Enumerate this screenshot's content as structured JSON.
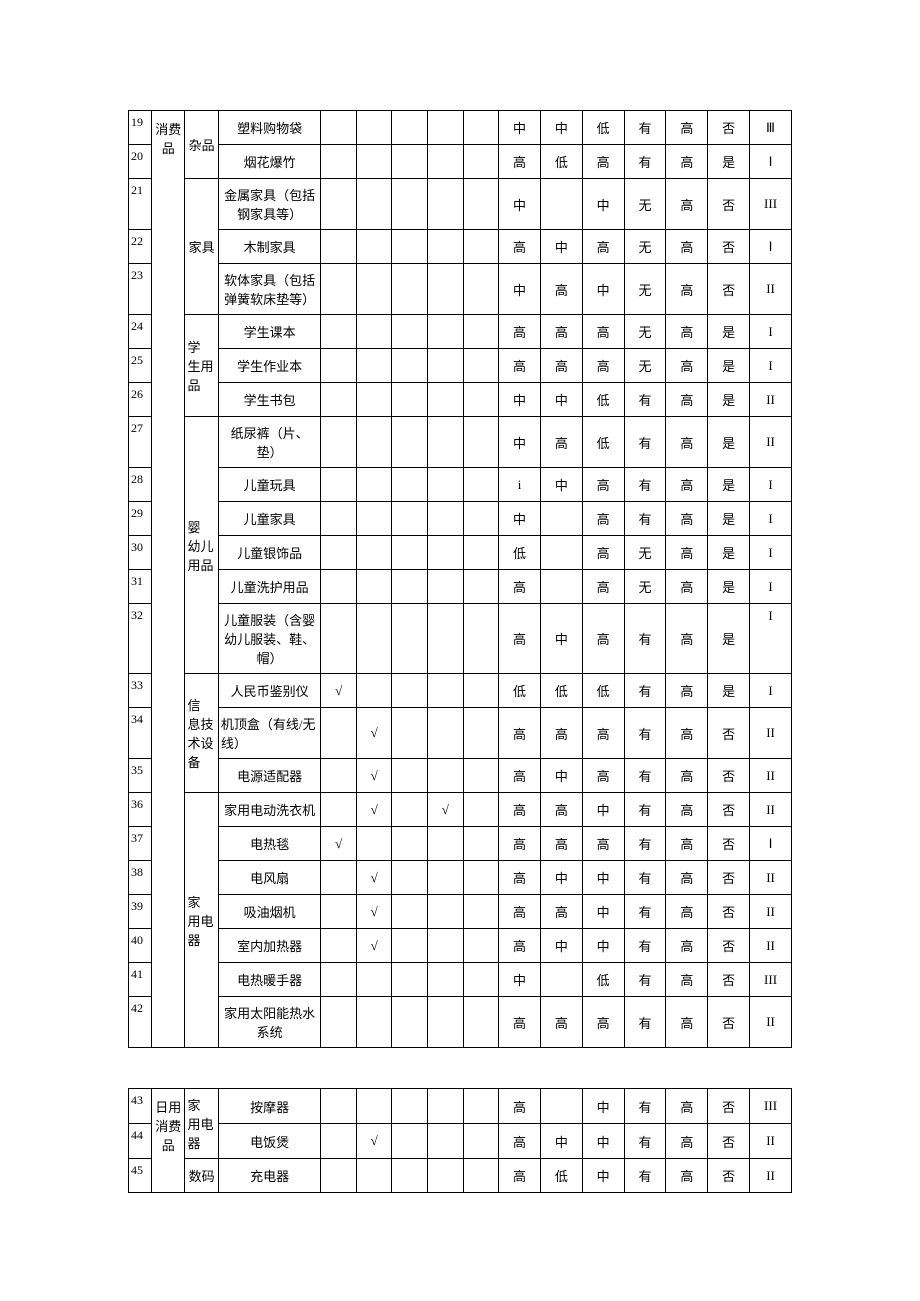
{
  "table1": {
    "rows": [
      {
        "seq": "19",
        "cat": "消费品",
        "cat_rowspan": 24,
        "sub": "杂品",
        "sub_rowspan": 2,
        "name": "塑料购物袋",
        "c1": "",
        "c2": "",
        "c3": "",
        "c4": "",
        "c5": "",
        "v1": "中",
        "v2": "中",
        "v3": "低",
        "v4": "有",
        "v5": "高",
        "v6": "否",
        "v7": "Ⅲ"
      },
      {
        "seq": "20",
        "name": "烟花爆竹",
        "c1": "",
        "c2": "",
        "c3": "",
        "c4": "",
        "c5": "",
        "v1": "高",
        "v2": "低",
        "v3": "高",
        "v4": "有",
        "v5": "高",
        "v6": "是",
        "v7": "Ⅰ"
      },
      {
        "seq": "21",
        "sub": "家具",
        "sub_rowspan": 3,
        "name": "金属家具（包括钢家具等）",
        "c1": "",
        "c2": "",
        "c3": "",
        "c4": "",
        "c5": "",
        "v1": "中",
        "v2": "",
        "v3": "中",
        "v4": "无",
        "v5": "高",
        "v6": "否",
        "v7": "III"
      },
      {
        "seq": "22",
        "name": "木制家具",
        "c1": "",
        "c2": "",
        "c3": "",
        "c4": "",
        "c5": "",
        "v1": "高",
        "v2": "中",
        "v3": "高",
        "v4": "无",
        "v5": "高",
        "v6": "否",
        "v7": "Ⅰ"
      },
      {
        "seq": "23",
        "name": "软体家具（包括弹簧软床垫等）",
        "c1": "",
        "c2": "",
        "c3": "",
        "c4": "",
        "c5": "",
        "v1": "中",
        "v2": "高",
        "v3": "中",
        "v4": "无",
        "v5": "高",
        "v6": "否",
        "v7": "II"
      },
      {
        "seq": "24",
        "sub": "学 生用品",
        "sub_rowspan": 3,
        "sub_just": true,
        "name": "学生课本",
        "c1": "",
        "c2": "",
        "c3": "",
        "c4": "",
        "c5": "",
        "v1": "高",
        "v2": "高",
        "v3": "高",
        "v4": "无",
        "v5": "高",
        "v6": "是",
        "v7": "I"
      },
      {
        "seq": "25",
        "name": "学生作业本",
        "c1": "",
        "c2": "",
        "c3": "",
        "c4": "",
        "c5": "",
        "v1": "高",
        "v2": "高",
        "v3": "高",
        "v4": "无",
        "v5": "高",
        "v6": "是",
        "v7": "I"
      },
      {
        "seq": "26",
        "name": "学生书包",
        "c1": "",
        "c2": "",
        "c3": "",
        "c4": "",
        "c5": "",
        "v1": "中",
        "v2": "中",
        "v3": "低",
        "v4": "有",
        "v5": "高",
        "v6": "是",
        "v7": "II"
      },
      {
        "seq": "27",
        "sub": "婴 幼儿 用品",
        "sub_rowspan": 6,
        "sub_just": true,
        "name": "纸尿裤（片、垫）",
        "c1": "",
        "c2": "",
        "c3": "",
        "c4": "",
        "c5": "",
        "v1": "中",
        "v2": "高",
        "v3": "低",
        "v4": "有",
        "v5": "高",
        "v6": "是",
        "v7": "II"
      },
      {
        "seq": "28",
        "name": "儿童玩具",
        "c1": "",
        "c2": "",
        "c3": "",
        "c4": "",
        "c5": "",
        "v1": "i",
        "v2": "中",
        "v3": "高",
        "v4": "有",
        "v5": "高",
        "v6": "是",
        "v7": "I"
      },
      {
        "seq": "29",
        "name": "儿童家具",
        "c1": "",
        "c2": "",
        "c3": "",
        "c4": "",
        "c5": "",
        "v1": "中",
        "v2": "",
        "v3": "高",
        "v4": "有",
        "v5": "高",
        "v6": "是",
        "v7": "I"
      },
      {
        "seq": "30",
        "name": "儿童银饰品",
        "c1": "",
        "c2": "",
        "c3": "",
        "c4": "",
        "c5": "",
        "v1": "低",
        "v2": "",
        "v3": "高",
        "v4": "无",
        "v5": "高",
        "v6": "是",
        "v7": "I"
      },
      {
        "seq": "31",
        "name": "儿童洗护用品",
        "c1": "",
        "c2": "",
        "c3": "",
        "c4": "",
        "c5": "",
        "v1": "高",
        "v2": "",
        "v3": "高",
        "v4": "无",
        "v5": "高",
        "v6": "是",
        "v7": "I"
      },
      {
        "seq": "32",
        "name": "儿童服装（含婴幼儿服装、鞋、帽）",
        "c1": "",
        "c2": "",
        "c3": "",
        "c4": "",
        "c5": "",
        "v1": "高",
        "v2": "中",
        "v3": "高",
        "v4": "有",
        "v5": "高",
        "v6": "是",
        "v7": "I",
        "v7_top": true
      },
      {
        "seq": "33",
        "sub": "信 息技 术设备",
        "sub_rowspan": 3,
        "sub_just": true,
        "name": "人民币鉴别仪",
        "c1": "√",
        "c2": "",
        "c3": "",
        "c4": "",
        "c5": "",
        "v1": "低",
        "v2": "低",
        "v3": "低",
        "v4": "有",
        "v5": "高",
        "v6": "是",
        "v7": "I"
      },
      {
        "seq": "34",
        "name": "机顶盒（有线/无线）",
        "name_left": true,
        "c1": "",
        "c2": "√",
        "c3": "",
        "c4": "",
        "c5": "",
        "v1": "高",
        "v2": "高",
        "v3": "高",
        "v4": "有",
        "v5": "高",
        "v6": "否",
        "v7": "II"
      },
      {
        "seq": "35",
        "name": "电源适配器",
        "c1": "",
        "c2": "√",
        "c3": "",
        "c4": "",
        "c5": "",
        "v1": "高",
        "v2": "中",
        "v3": "高",
        "v4": "有",
        "v5": "高",
        "v6": "否",
        "v7": "II"
      },
      {
        "seq": "36",
        "sub": "家 用电器",
        "sub_rowspan": 7,
        "sub_just": true,
        "name": "家用电动洗衣机",
        "c1": "",
        "c2": "√",
        "c3": "",
        "c4": "√",
        "c5": "",
        "v1": "高",
        "v2": "高",
        "v3": "中",
        "v4": "有",
        "v5": "高",
        "v6": "否",
        "v7": "II"
      },
      {
        "seq": "37",
        "name": "电热毯",
        "c1": "√",
        "c2": "",
        "c3": "",
        "c4": "",
        "c5": "",
        "v1": "高",
        "v2": "高",
        "v3": "高",
        "v4": "有",
        "v5": "高",
        "v6": "否",
        "v7": "Ⅰ"
      },
      {
        "seq": "38",
        "name": "电风扇",
        "c1": "",
        "c2": "√",
        "c3": "",
        "c4": "",
        "c5": "",
        "v1": "高",
        "v2": "中",
        "v3": "中",
        "v4": "有",
        "v5": "高",
        "v6": "否",
        "v7": "II"
      },
      {
        "seq": "39",
        "name": "吸油烟机",
        "c1": "",
        "c2": "√",
        "c3": "",
        "c4": "",
        "c5": "",
        "v1": "高",
        "v2": "高",
        "v3": "中",
        "v4": "有",
        "v5": "高",
        "v6": "否",
        "v7": "II"
      },
      {
        "seq": "40",
        "name": "室内加热器",
        "c1": "",
        "c2": "√",
        "c3": "",
        "c4": "",
        "c5": "",
        "v1": "高",
        "v2": "中",
        "v3": "中",
        "v4": "有",
        "v5": "高",
        "v6": "否",
        "v7": "II"
      },
      {
        "seq": "41",
        "name": "电热暖手器",
        "c1": "",
        "c2": "",
        "c3": "",
        "c4": "",
        "c5": "",
        "v1": "中",
        "v2": "",
        "v3": "低",
        "v4": "有",
        "v5": "高",
        "v6": "否",
        "v7": "III"
      },
      {
        "seq": "42",
        "name": "家用太阳能热水系统",
        "c1": "",
        "c2": "",
        "c3": "",
        "c4": "",
        "c5": "",
        "v1": "高",
        "v2": "高",
        "v3": "高",
        "v4": "有",
        "v5": "高",
        "v6": "否",
        "v7": "II"
      }
    ]
  },
  "table2": {
    "rows": [
      {
        "seq": "43",
        "cat": "日用消费品",
        "cat_rowspan": 3,
        "sub": "家 用电器",
        "sub_rowspan": 2,
        "sub_just": true,
        "name": "按摩器",
        "c1": "",
        "c2": "",
        "c3": "",
        "c4": "",
        "c5": "",
        "v1": "高",
        "v2": "",
        "v3": "中",
        "v4": "有",
        "v5": "高",
        "v6": "否",
        "v7": "III"
      },
      {
        "seq": "44",
        "name": "电饭煲",
        "c1": "",
        "c2": "√",
        "c3": "",
        "c4": "",
        "c5": "",
        "v1": "高",
        "v2": "中",
        "v3": "中",
        "v4": "有",
        "v5": "高",
        "v6": "否",
        "v7": "II"
      },
      {
        "seq": "45",
        "sub": "数码",
        "sub_rowspan": 1,
        "name": "充电器",
        "c1": "",
        "c2": "",
        "c3": "",
        "c4": "",
        "c5": "",
        "v1": "高",
        "v2": "低",
        "v3": "中",
        "v4": "有",
        "v5": "高",
        "v6": "否",
        "v7": "II"
      }
    ]
  }
}
